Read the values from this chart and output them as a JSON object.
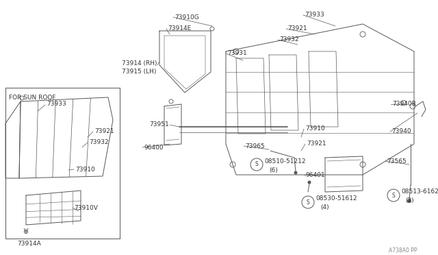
{
  "bg_color": "#ffffff",
  "line_color": "#555555",
  "text_color": "#333333",
  "watermark": "A738A0 PP",
  "figsize": [
    6.4,
    3.72
  ],
  "dpi": 100,
  "xlim": [
    0,
    640
  ],
  "ylim": [
    0,
    372
  ]
}
